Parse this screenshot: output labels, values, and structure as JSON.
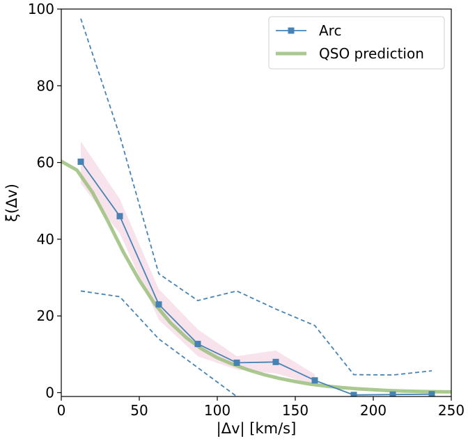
{
  "chart_data": {
    "type": "line",
    "title": "",
    "xlabel": "|Δv| [km/s]",
    "ylabel": "ξ(Δv)",
    "xlim": [
      0,
      250
    ],
    "ylim": [
      -1,
      100
    ],
    "xticks": [
      0,
      50,
      100,
      150,
      200,
      250
    ],
    "yticks": [
      0,
      20,
      40,
      60,
      80,
      100
    ],
    "grid": false,
    "legend_position": "top-right",
    "series": [
      {
        "name": "Arc",
        "style": "line-with-square-markers",
        "color": "#4682b4",
        "x": [
          12.5,
          37.5,
          62.5,
          87.5,
          112.5,
          137.5,
          162.5,
          187.5,
          212.5,
          237.5
        ],
        "y": [
          60.2,
          46.0,
          23.0,
          12.7,
          7.8,
          8.0,
          3.2,
          -0.6,
          -0.5,
          -0.4
        ]
      },
      {
        "name": "QSO prediction",
        "style": "thick-line",
        "color": "#9bbf7c",
        "x": [
          0,
          10,
          20,
          30,
          40,
          50,
          60,
          70,
          80,
          90,
          100,
          110,
          120,
          130,
          140,
          150,
          160,
          170,
          180,
          190,
          200,
          210,
          220,
          230,
          240,
          250
        ],
        "y": [
          60.3,
          58.0,
          52.2,
          44.6,
          36.5,
          29.3,
          23.1,
          18.2,
          14.4,
          11.4,
          9.1,
          7.4,
          5.9,
          4.7,
          3.7,
          2.9,
          2.2,
          1.7,
          1.3,
          1.0,
          0.75,
          0.55,
          0.4,
          0.3,
          0.25,
          0.2
        ]
      }
    ],
    "upper_bound": {
      "style": "dashed",
      "color": "#4682b4",
      "x": [
        12.5,
        37.5,
        62.5,
        87.5,
        112.5,
        137.5,
        162.5,
        187.5,
        212.5,
        237.5
      ],
      "y": [
        97.5,
        67.0,
        31.0,
        24.0,
        26.5,
        21.8,
        17.5,
        4.7,
        4.6,
        5.7
      ]
    },
    "lower_bound": {
      "style": "dashed",
      "color": "#4682b4",
      "x": [
        12.5,
        37.5,
        62.5,
        87.5,
        112.5
      ],
      "y": [
        26.5,
        25.0,
        14.0,
        6.5,
        -1.0
      ]
    },
    "band": {
      "color": "#f2c6d9",
      "x": [
        12.5,
        37.5,
        62.5,
        87.5,
        112.5,
        137.5,
        162.5
      ],
      "upper": [
        65.5,
        50.5,
        27.0,
        16.5,
        9.5,
        11.0,
        4.8
      ],
      "lower": [
        54.5,
        41.5,
        19.0,
        9.5,
        6.0,
        5.0,
        2.0
      ]
    }
  }
}
